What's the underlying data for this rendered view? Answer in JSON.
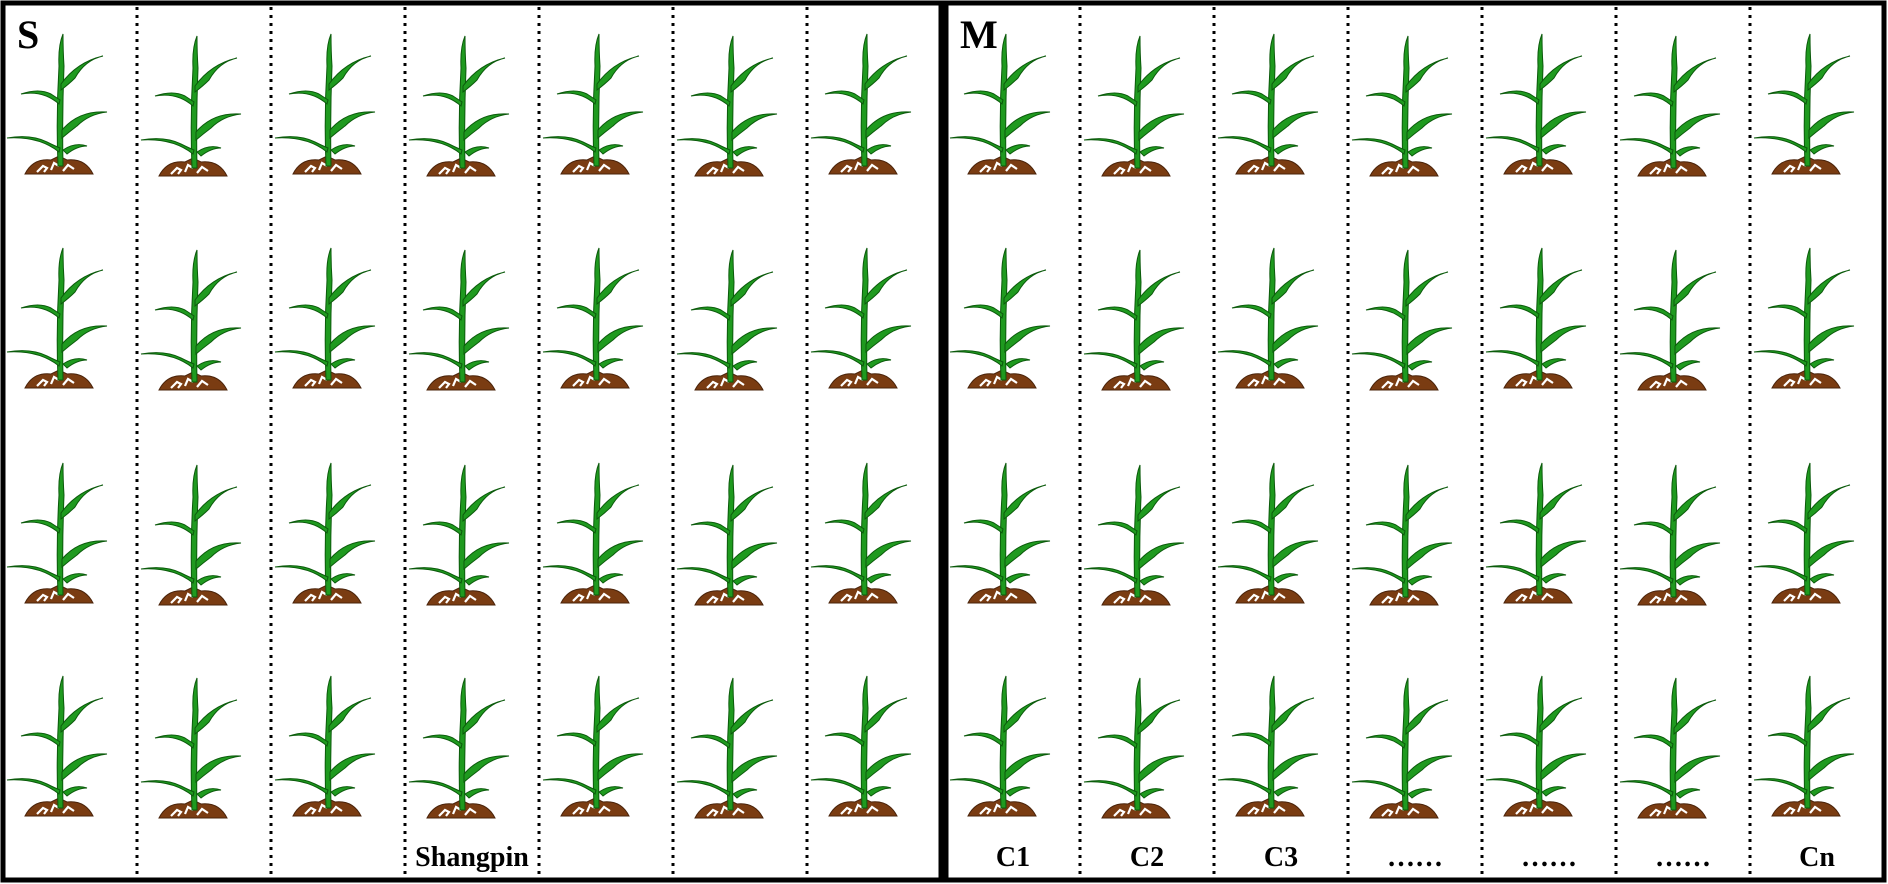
{
  "panels": [
    {
      "id": "single",
      "label": "S",
      "columns": 7,
      "rows": 4,
      "column_labels": [
        "",
        "",
        "",
        "Shangpin",
        "",
        "",
        ""
      ]
    },
    {
      "id": "mixed",
      "label": "M",
      "columns": 7,
      "rows": 4,
      "column_labels": [
        "C1",
        "C2",
        "C3",
        "……",
        "……",
        "……",
        "Cn"
      ]
    }
  ],
  "colors": {
    "leaf": "#1f9a1f",
    "leaf_dark": "#0b5a0b",
    "soil": "#7a3c12",
    "soil_dark": "#4a230a",
    "border": "#000000",
    "background": "#ffffff"
  },
  "icons": {
    "plant": "maize-plant-icon"
  }
}
